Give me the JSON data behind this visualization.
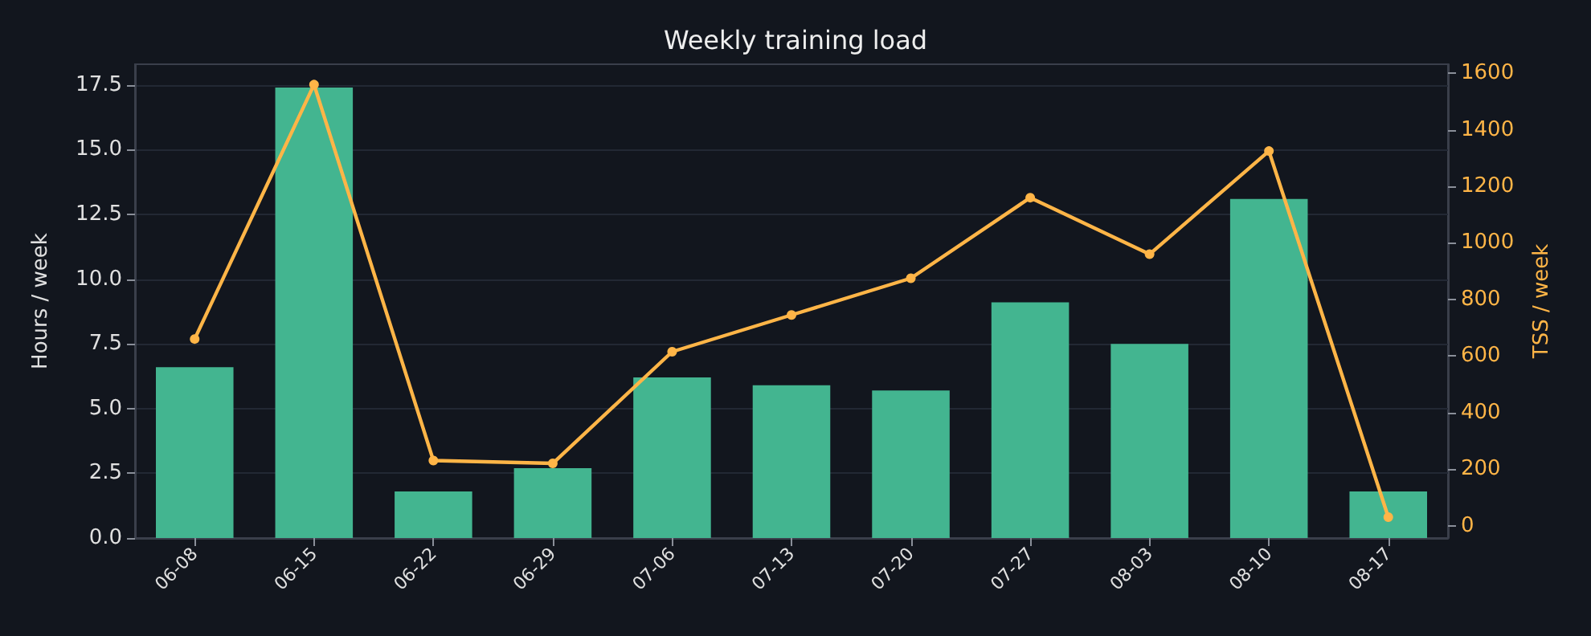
{
  "chart_data": {
    "type": "bar",
    "title": "Weekly training load",
    "ylabel": "Hours / week",
    "y2label": "TSS / week",
    "categories": [
      "06-08",
      "06-15",
      "06-22",
      "06-29",
      "07-06",
      "07-13",
      "07-20",
      "07-27",
      "08-03",
      "08-10",
      "08-17"
    ],
    "series": [
      {
        "color": "#43b590",
        "values": [
          6.6,
          17.4,
          1.8,
          2.7,
          6.2,
          5.9,
          5.7,
          9.1,
          7.5,
          13.1,
          1.8
        ]
      },
      {
        "type": "line",
        "axis": "y2",
        "color": "#ffb547",
        "marker": "circle",
        "values": [
          660,
          1560,
          230,
          220,
          615,
          745,
          875,
          1160,
          960,
          1325,
          30
        ]
      }
    ],
    "ylim": [
      0,
      18.3
    ],
    "yticks": [
      {
        "value": 0,
        "label": "0.0"
      },
      {
        "value": 2.5,
        "label": "2.5"
      },
      {
        "value": 5,
        "label": "5.0"
      },
      {
        "value": 7.5,
        "label": "7.5"
      },
      {
        "value": 10,
        "label": "10.0"
      },
      {
        "value": 12.5,
        "label": "12.5"
      },
      {
        "value": 15,
        "label": "15.0"
      },
      {
        "value": 17.5,
        "label": "17.5"
      }
    ],
    "y2lim": [
      -44,
      1632
    ],
    "y2ticks": [
      0,
      200,
      400,
      600,
      800,
      1000,
      1200,
      1400,
      1600
    ],
    "grid": "y"
  }
}
